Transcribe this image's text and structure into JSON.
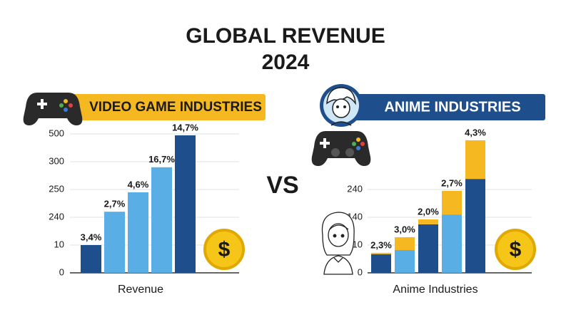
{
  "title": "GLOBAL REVENUE",
  "subtitle": "2024",
  "vs": "VS",
  "coin": "$",
  "chart_data": [
    {
      "type": "bar",
      "title": "VIDEO GAME INDUSTRIES",
      "xlabel": "Revenue",
      "values": [
        10,
        242,
        249,
        290,
        490
      ],
      "colors": [
        "#1f4e8c",
        "#5aaee6",
        "#5aaee6",
        "#5aaee6",
        "#1f4e8c"
      ],
      "bar_labels": [
        "3,4%",
        "2,7%",
        "4,6%",
        "16,7%",
        "14,7%"
      ],
      "ylim": [
        0,
        500
      ],
      "yticks": [
        0,
        10,
        240,
        250,
        300,
        500
      ],
      "grid": true
    },
    {
      "type": "stacked_bar",
      "title": "ANIME INDUSTRIES",
      "xlabel": "Anime Industries",
      "series": [
        {
          "color": "#1f4e8c",
          "values": [
            6.7,
            null,
            107,
            null,
            278
          ]
        },
        {
          "color": "#5aaee6",
          "values": [
            null,
            8.2,
            null,
            150,
            null
          ]
        },
        {
          "color": "#f5b820",
          "values": [
            0.5,
            38.5,
            23,
            85,
            139
          ]
        }
      ],
      "bar_labels": [
        "2,3%",
        "3,0%",
        "2,0%",
        "2,7%",
        "4,3%"
      ],
      "ylim": [
        0,
        450
      ],
      "yticks": [
        0,
        10,
        140,
        240
      ],
      "grid": true
    }
  ]
}
